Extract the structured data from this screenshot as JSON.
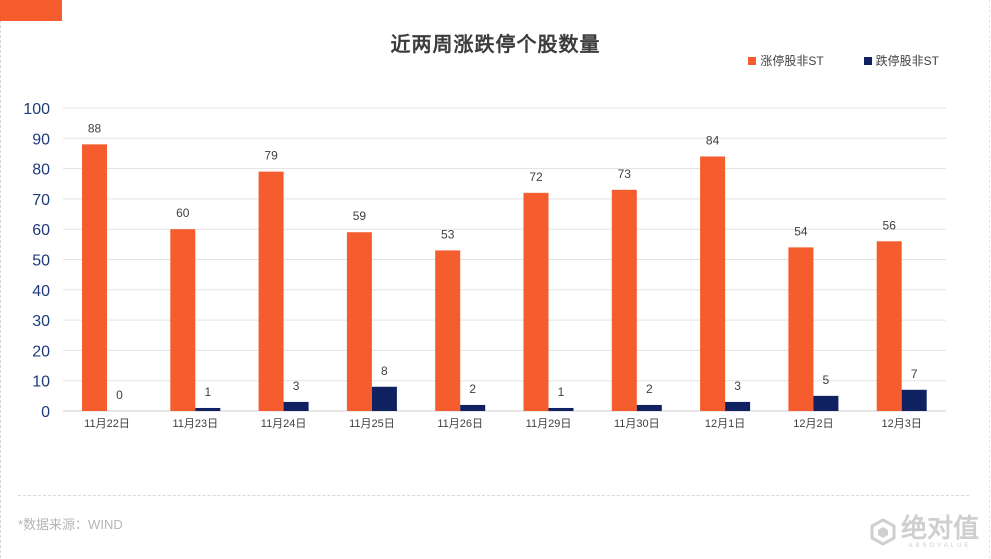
{
  "page": {
    "title": "近两周涨跌停个股数量",
    "source": "*数据来源：WIND",
    "watermark_text": "绝对值",
    "watermark_sub": "ABSOVALUE"
  },
  "colors": {
    "accent": "#f55c2e",
    "limit_up": "#f55c2e",
    "limit_down": "#0f2160"
  },
  "chart_data": {
    "type": "bar",
    "title": "近两周涨跌停个股数量",
    "categories": [
      "11月22日",
      "11月23日",
      "11月24日",
      "11月25日",
      "11月26日",
      "11月29日",
      "11月30日",
      "12月1日",
      "12月2日",
      "12月3日"
    ],
    "series": [
      {
        "name": "涨停股非ST",
        "color": "#f55c2e",
        "values": [
          88,
          60,
          79,
          59,
          53,
          72,
          73,
          84,
          54,
          56
        ]
      },
      {
        "name": "跌停股非ST",
        "color": "#0f2160",
        "values": [
          0,
          1,
          3,
          8,
          2,
          1,
          2,
          3,
          5,
          7
        ]
      }
    ],
    "ylim": [
      0,
      100
    ],
    "yticks": [
      0,
      10,
      20,
      30,
      40,
      50,
      60,
      70,
      80,
      90,
      100
    ],
    "grid": true,
    "legend": "top-right",
    "data_labels": true
  }
}
